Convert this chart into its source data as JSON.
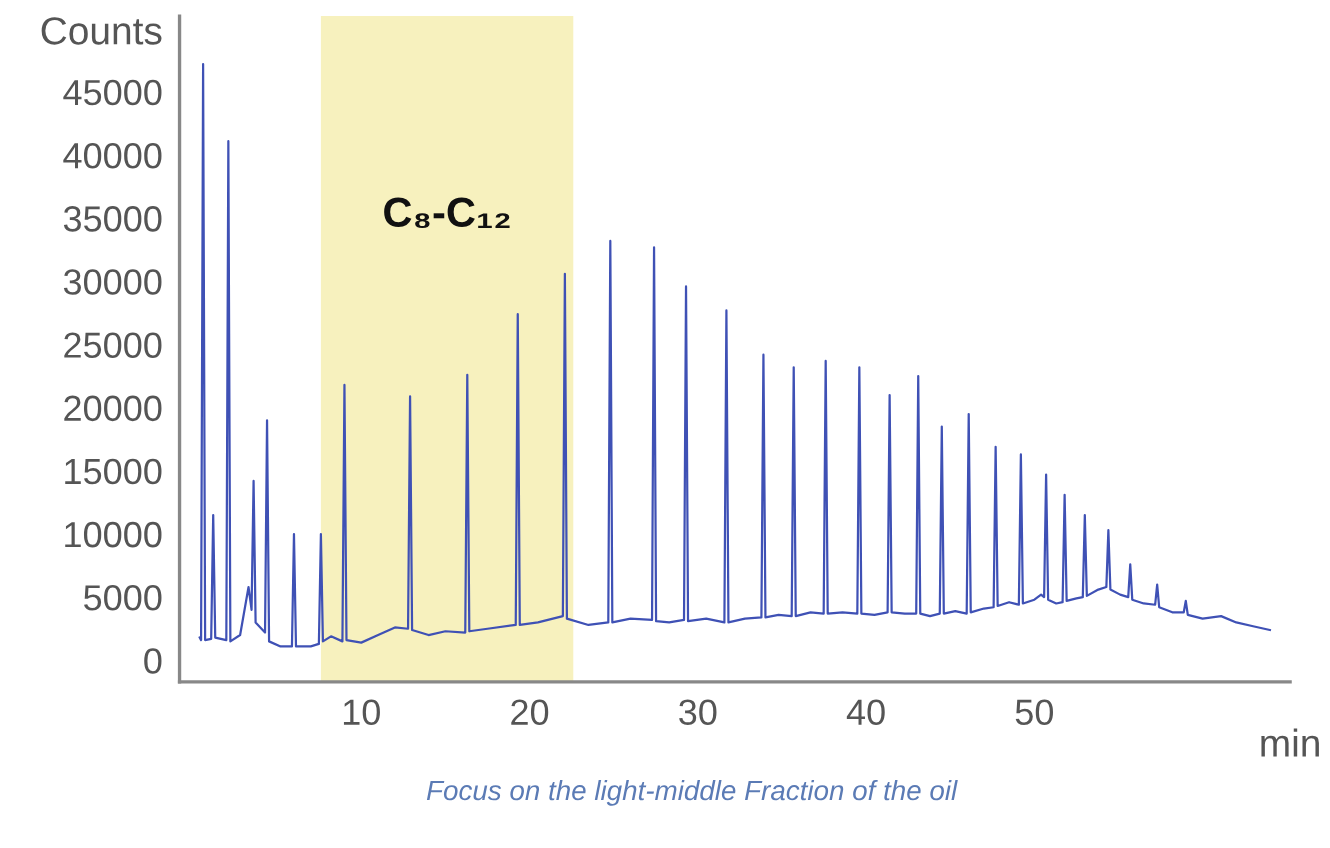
{
  "chart_data": {
    "type": "line",
    "ylabel": "Counts",
    "xlabel": "min",
    "annotations": [
      "Focus on the light-middle Fraction of the oil"
    ],
    "xlim": [
      -0.8,
      65.2
    ],
    "ylim": [
      -1700,
      51000
    ],
    "xticks": [
      10,
      20,
      30,
      40,
      50
    ],
    "yticks": [
      0,
      5000,
      10000,
      15000,
      20000,
      25000,
      30000,
      35000,
      40000,
      45000
    ],
    "grid": false,
    "marker": "none",
    "line_style": "solid",
    "bands": [
      {
        "axis": "x",
        "from": 7.6,
        "to": 22.6,
        "label": "C₈-C₁₂",
        "color": "#f7f1be"
      }
    ],
    "series": [
      {
        "color": "#3f51b5",
        "x": [
          0.4,
          0.48,
          0.6,
          0.72,
          1.08,
          1.2,
          1.32,
          1.98,
          2.1,
          2.22,
          2.8,
          3.3,
          3.48,
          3.6,
          3.72,
          4.28,
          4.4,
          4.52,
          5.2,
          5.88,
          6.0,
          6.12,
          7.0,
          7.48,
          7.6,
          7.72,
          8.2,
          8.88,
          9.0,
          9.12,
          10.0,
          11.0,
          12.0,
          12.78,
          12.9,
          13.02,
          14.0,
          15.0,
          16.18,
          16.3,
          16.42,
          17.5,
          19.18,
          19.3,
          19.42,
          20.5,
          21.98,
          22.1,
          22.22,
          23.5,
          24.68,
          24.8,
          24.92,
          26.0,
          27.28,
          27.4,
          27.52,
          28.3,
          29.18,
          29.3,
          29.42,
          30.5,
          31.58,
          31.7,
          31.82,
          32.8,
          33.78,
          33.9,
          34.02,
          34.8,
          35.58,
          35.7,
          35.82,
          36.7,
          37.48,
          37.6,
          37.72,
          38.6,
          39.48,
          39.6,
          39.72,
          40.5,
          41.28,
          41.4,
          41.52,
          42.3,
          42.98,
          43.1,
          43.22,
          43.8,
          44.38,
          44.5,
          44.62,
          45.3,
          45.98,
          46.1,
          46.22,
          47.0,
          47.58,
          47.7,
          47.82,
          48.5,
          49.08,
          49.2,
          49.32,
          50.0,
          50.4,
          50.58,
          50.7,
          50.82,
          51.3,
          51.68,
          51.8,
          51.92,
          52.5,
          52.88,
          53.0,
          53.12,
          53.8,
          54.28,
          54.4,
          54.52,
          55.1,
          55.58,
          55.7,
          55.82,
          56.5,
          57.18,
          57.3,
          57.42,
          58.2,
          58.88,
          59.0,
          59.12,
          60.0,
          61.1,
          62.0,
          63.0,
          64.0
        ],
        "values": [
          1800,
          1600,
          47200,
          1600,
          1700,
          11500,
          1800,
          1600,
          41100,
          1500,
          2000,
          5800,
          4000,
          14200,
          3000,
          2200,
          19000,
          1500,
          1100,
          1100,
          10000,
          1100,
          1100,
          1300,
          10000,
          1500,
          1900,
          1500,
          21800,
          1600,
          1400,
          2000,
          2600,
          2500,
          20900,
          2400,
          2000,
          2300,
          2200,
          22600,
          2300,
          2500,
          2800,
          27400,
          2800,
          3000,
          3500,
          30600,
          3300,
          2800,
          3000,
          33200,
          3000,
          3300,
          3200,
          32700,
          3100,
          3000,
          3200,
          29600,
          3100,
          3300,
          3000,
          27700,
          3000,
          3300,
          3400,
          24200,
          3400,
          3600,
          3500,
          23200,
          3500,
          3800,
          3700,
          23700,
          3700,
          3800,
          3700,
          23200,
          3700,
          3600,
          3800,
          21000,
          3800,
          3700,
          3700,
          22500,
          3700,
          3500,
          3700,
          18500,
          3700,
          3900,
          3700,
          19500,
          3800,
          4100,
          4200,
          16900,
          4300,
          4600,
          4400,
          16300,
          4500,
          4800,
          5200,
          5000,
          14700,
          4800,
          4500,
          4600,
          13100,
          4700,
          4900,
          5000,
          11500,
          5100,
          5600,
          5800,
          10300,
          5600,
          5200,
          5000,
          7600,
          4800,
          4500,
          4400,
          6000,
          4200,
          3800,
          3800,
          4700,
          3600,
          3300,
          3500,
          3000,
          2700,
          2400
        ]
      }
    ]
  }
}
